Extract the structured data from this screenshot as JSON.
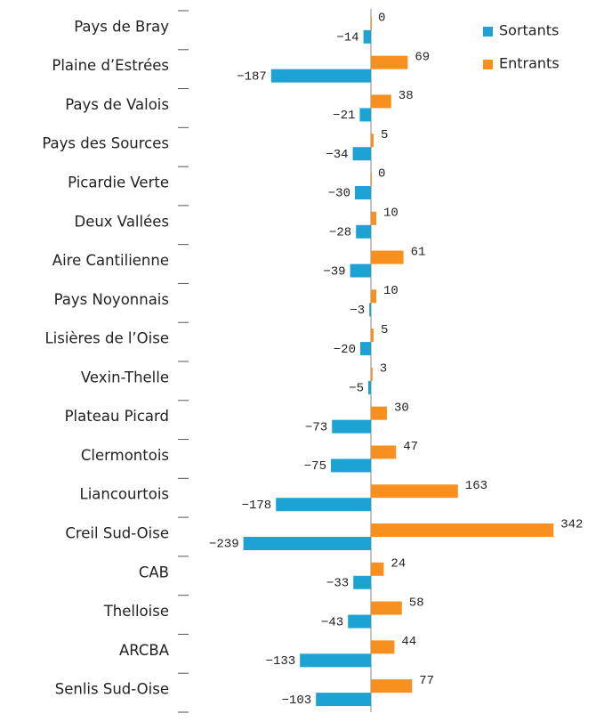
{
  "chart_data": {
    "type": "diverging-bar",
    "categories": [
      "Pays de Bray",
      "Plaine d’Estrées",
      "Pays de Valois",
      "Pays des Sources",
      "Picardie Verte",
      "Deux Vallées",
      "Aire Cantilienne",
      "Pays Noyonnais",
      "Lisières de l’Oise",
      "Vexin-Thelle",
      "Plateau Picard",
      "Clermontois",
      "Liancourtois",
      "Creil Sud-Oise",
      "CAB",
      "Thelloise",
      "ARCBA",
      "Senlis Sud-Oise"
    ],
    "series": [
      {
        "name": "Sortants",
        "color": "#1ca3d3",
        "values": [
          -14,
          -187,
          -21,
          -34,
          -30,
          -28,
          -39,
          -3,
          -20,
          -5,
          -73,
          -75,
          -178,
          -239,
          -33,
          -43,
          -133,
          -103
        ],
        "value_labels": [
          "−14",
          "−187",
          "−21",
          "−34",
          "−30",
          "−28",
          "−39",
          "−3",
          "−20",
          "−5",
          "−73",
          "−75",
          "−178",
          "−239",
          "−33",
          "−43",
          "−133",
          "−103"
        ]
      },
      {
        "name": "Entrants",
        "color": "#f7901e",
        "values": [
          0,
          69,
          38,
          5,
          0,
          10,
          61,
          10,
          5,
          3,
          30,
          47,
          163,
          342,
          24,
          58,
          44,
          77
        ]
      }
    ],
    "legend": "top-right"
  }
}
